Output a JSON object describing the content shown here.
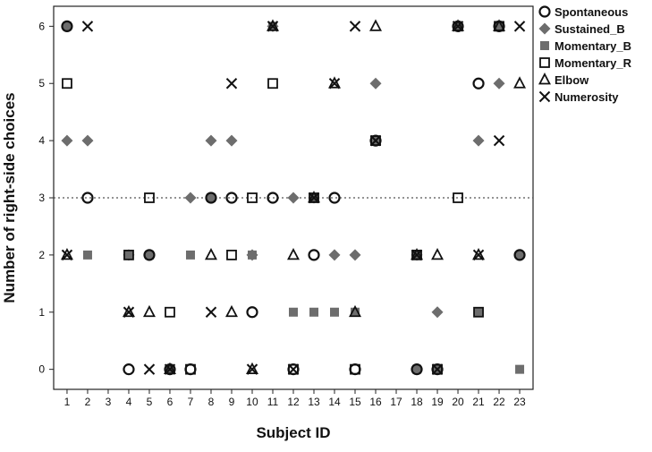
{
  "chart_data": {
    "type": "scatter",
    "xlabel": "Subject ID",
    "ylabel": "Number of right-side choices",
    "x_ticks": [
      "1",
      "2",
      "3",
      "4",
      "5",
      "6",
      "7",
      "8",
      "9",
      "10",
      "11",
      "12",
      "13",
      "14",
      "15",
      "16",
      "17",
      "18",
      "19",
      "20",
      "21",
      "22",
      "23"
    ],
    "y_ticks": [
      "0",
      "1",
      "2",
      "3",
      "4",
      "5",
      "6"
    ],
    "xlim": [
      0.35,
      23.65
    ],
    "ylim": [
      -0.35,
      6.35
    ],
    "reference_line": {
      "y": 3,
      "style": "dotted"
    },
    "grid": false,
    "legend_position": "right",
    "colors": {
      "filled": "#6d6d6d",
      "outline": "#111111",
      "reference_line": "#555555"
    },
    "series": [
      {
        "name": "Spontaneous",
        "marker": "circle-open",
        "points": [
          [
            1,
            6
          ],
          [
            2,
            3
          ],
          [
            4,
            0
          ],
          [
            5,
            2
          ],
          [
            6,
            0
          ],
          [
            7,
            0
          ],
          [
            8,
            3
          ],
          [
            9,
            3
          ],
          [
            10,
            1
          ],
          [
            11,
            3
          ],
          [
            12,
            0
          ],
          [
            13,
            2
          ],
          [
            14,
            3
          ],
          [
            15,
            0
          ],
          [
            16,
            4
          ],
          [
            18,
            0
          ],
          [
            19,
            0
          ],
          [
            20,
            6
          ],
          [
            21,
            5
          ],
          [
            22,
            6
          ],
          [
            23,
            2
          ]
        ]
      },
      {
        "name": "Sustained_B",
        "marker": "diamond-filled",
        "points": [
          [
            1,
            4
          ],
          [
            2,
            4
          ],
          [
            4,
            2
          ],
          [
            5,
            2
          ],
          [
            6,
            0
          ],
          [
            7,
            3
          ],
          [
            8,
            4
          ],
          [
            9,
            4
          ],
          [
            10,
            2
          ],
          [
            11,
            6
          ],
          [
            12,
            3
          ],
          [
            13,
            3
          ],
          [
            14,
            2
          ],
          [
            15,
            2
          ],
          [
            16,
            5
          ],
          [
            18,
            2
          ],
          [
            19,
            1
          ],
          [
            20,
            6
          ],
          [
            21,
            4
          ],
          [
            22,
            5
          ],
          [
            23,
            2
          ]
        ]
      },
      {
        "name": "Momentary_B",
        "marker": "square-filled",
        "points": [
          [
            1,
            6
          ],
          [
            2,
            2
          ],
          [
            4,
            2
          ],
          [
            5,
            2
          ],
          [
            6,
            0
          ],
          [
            7,
            2
          ],
          [
            8,
            3
          ],
          [
            10,
            2
          ],
          [
            11,
            6
          ],
          [
            12,
            1
          ],
          [
            13,
            1
          ],
          [
            14,
            1
          ],
          [
            15,
            1
          ],
          [
            16,
            4
          ],
          [
            18,
            0
          ],
          [
            19,
            0
          ],
          [
            20,
            6
          ],
          [
            21,
            1
          ],
          [
            22,
            6
          ],
          [
            23,
            0
          ]
        ]
      },
      {
        "name": "Momentary_R",
        "marker": "square-open",
        "points": [
          [
            1,
            5
          ],
          [
            4,
            2
          ],
          [
            5,
            3
          ],
          [
            6,
            1
          ],
          [
            7,
            0
          ],
          [
            9,
            2
          ],
          [
            10,
            3
          ],
          [
            11,
            5
          ],
          [
            12,
            0
          ],
          [
            13,
            3
          ],
          [
            15,
            0
          ],
          [
            16,
            4
          ],
          [
            18,
            2
          ],
          [
            19,
            0
          ],
          [
            20,
            3
          ],
          [
            21,
            1
          ],
          [
            22,
            6
          ]
        ]
      },
      {
        "name": "Elbow",
        "marker": "triangle-open",
        "points": [
          [
            1,
            2
          ],
          [
            4,
            1
          ],
          [
            5,
            1
          ],
          [
            6,
            0
          ],
          [
            8,
            2
          ],
          [
            9,
            1
          ],
          [
            10,
            0
          ],
          [
            11,
            6
          ],
          [
            12,
            2
          ],
          [
            13,
            3
          ],
          [
            14,
            5
          ],
          [
            15,
            1
          ],
          [
            16,
            6
          ],
          [
            18,
            2
          ],
          [
            19,
            2
          ],
          [
            20,
            6
          ],
          [
            21,
            2
          ],
          [
            22,
            6
          ],
          [
            23,
            5
          ]
        ]
      },
      {
        "name": "Numerosity",
        "marker": "x",
        "points": [
          [
            1,
            2
          ],
          [
            2,
            6
          ],
          [
            4,
            1
          ],
          [
            5,
            0
          ],
          [
            6,
            0
          ],
          [
            8,
            1
          ],
          [
            9,
            5
          ],
          [
            10,
            0
          ],
          [
            11,
            6
          ],
          [
            12,
            0
          ],
          [
            13,
            3
          ],
          [
            14,
            5
          ],
          [
            15,
            6
          ],
          [
            16,
            4
          ],
          [
            18,
            2
          ],
          [
            19,
            0
          ],
          [
            20,
            6
          ],
          [
            21,
            2
          ],
          [
            22,
            4
          ],
          [
            23,
            6
          ]
        ]
      }
    ]
  }
}
